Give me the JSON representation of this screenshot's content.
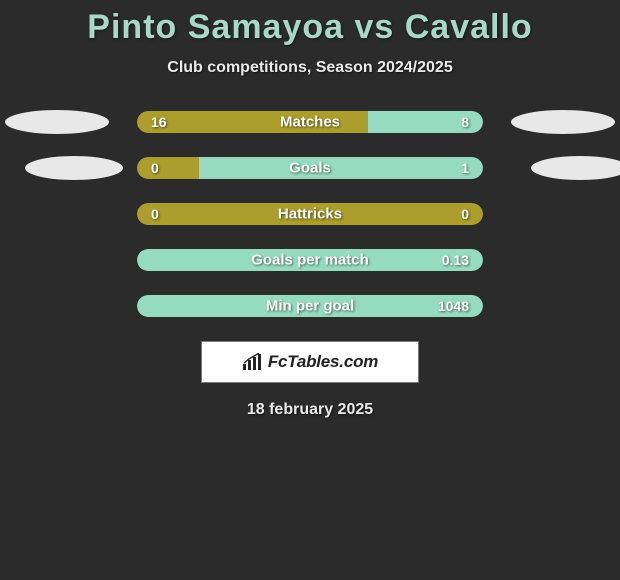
{
  "title": "Pinto Samayoa vs Cavallo",
  "subtitle": "Club competitions, Season 2024/2025",
  "date": "18 february 2025",
  "footer_brand": "FcTables.com",
  "colors": {
    "background": "#2b2b2b",
    "title_color": "#a8d8c8",
    "left_color": "#ab9e2d",
    "right_color": "#95dbc1",
    "ellipse_color": "#e8e8e8"
  },
  "typography": {
    "title_fontsize": 34,
    "subtitle_fontsize": 16,
    "label_fontsize": 15,
    "value_fontsize": 14
  },
  "stats": [
    {
      "label": "Matches",
      "left_value": "16",
      "right_value": "8",
      "left_pct": 66.7,
      "right_pct": 33.3,
      "show_ellipses": true
    },
    {
      "label": "Goals",
      "left_value": "0",
      "right_value": "1",
      "left_pct": 18,
      "right_pct": 82,
      "show_ellipses": true
    },
    {
      "label": "Hattricks",
      "left_value": "0",
      "right_value": "0",
      "left_pct": 100,
      "right_pct": 0,
      "show_ellipses": false
    },
    {
      "label": "Goals per match",
      "left_value": "",
      "right_value": "0.13",
      "left_pct": 0,
      "right_pct": 100,
      "show_ellipses": false
    },
    {
      "label": "Min per goal",
      "left_value": "",
      "right_value": "1048",
      "left_pct": 0,
      "right_pct": 100,
      "show_ellipses": false
    }
  ]
}
